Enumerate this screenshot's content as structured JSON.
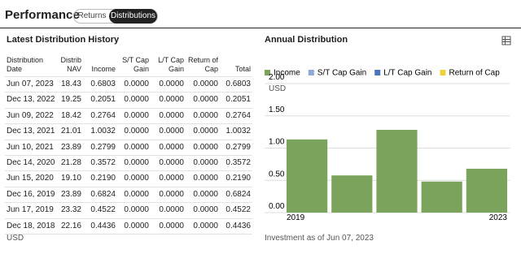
{
  "header": {
    "title": "Performance",
    "tabs": [
      "Returns",
      "Distributions"
    ]
  },
  "table": {
    "title": "Latest Distribution History",
    "columns": [
      "Distribution\nDate",
      "Distrib\nNAV",
      "Income",
      "S/T Cap\nGain",
      "L/T Cap\nGain",
      "Return of\nCap",
      "Total"
    ],
    "rows": [
      [
        "Jun 07, 2023",
        "18.43",
        "0.6803",
        "0.0000",
        "0.0000",
        "0.0000",
        "0.6803"
      ],
      [
        "Dec 13, 2022",
        "19.25",
        "0.2051",
        "0.0000",
        "0.0000",
        "0.0000",
        "0.2051"
      ],
      [
        "Jun 09, 2022",
        "18.42",
        "0.2764",
        "0.0000",
        "0.0000",
        "0.0000",
        "0.2764"
      ],
      [
        "Dec 13, 2021",
        "21.01",
        "1.0032",
        "0.0000",
        "0.0000",
        "0.0000",
        "1.0032"
      ],
      [
        "Jun 10, 2021",
        "23.89",
        "0.2799",
        "0.0000",
        "0.0000",
        "0.0000",
        "0.2799"
      ],
      [
        "Dec 14, 2020",
        "21.28",
        "0.3572",
        "0.0000",
        "0.0000",
        "0.0000",
        "0.3572"
      ],
      [
        "Jun 15, 2020",
        "19.10",
        "0.2190",
        "0.0000",
        "0.0000",
        "0.0000",
        "0.2190"
      ],
      [
        "Dec 16, 2019",
        "23.89",
        "0.6824",
        "0.0000",
        "0.0000",
        "0.0000",
        "0.6824"
      ],
      [
        "Jun 17, 2019",
        "23.32",
        "0.4522",
        "0.0000",
        "0.0000",
        "0.0000",
        "0.4522"
      ],
      [
        "Dec 18, 2018",
        "22.16",
        "0.4436",
        "0.0000",
        "0.0000",
        "0.0000",
        "0.4436"
      ]
    ],
    "footnote": "USD"
  },
  "chart_data": {
    "type": "bar",
    "stacked": true,
    "title": "Annual Distribution",
    "y_unit": "USD",
    "categories": [
      "2019",
      null,
      null,
      null,
      "2023"
    ],
    "series": [
      {
        "name": "Income",
        "color": "#7ba35b",
        "values": [
          1.1346,
          0.5762,
          1.2831,
          0.4815,
          0.6803
        ]
      },
      {
        "name": "S/T Cap Gain",
        "color": "#8fa8d6",
        "values": [
          0,
          0,
          0,
          0,
          0
        ]
      },
      {
        "name": "L/T Cap Gain",
        "color": "#4a74c0",
        "values": [
          0,
          0,
          0,
          0,
          0
        ]
      },
      {
        "name": "Return of Cap",
        "color": "#efd13b",
        "values": [
          0,
          0,
          0,
          0,
          0
        ]
      }
    ],
    "ylim": [
      0,
      2
    ],
    "yticks": [
      {
        "value": 0,
        "label": "0.00"
      },
      {
        "value": 0.5,
        "label": "0.50"
      },
      {
        "value": 1,
        "label": "1.00"
      },
      {
        "value": 1.5,
        "label": "1.50"
      },
      {
        "value": 2,
        "label": "2.00"
      }
    ],
    "grid": true,
    "footnote": "Investment as of Jun 07, 2023"
  }
}
